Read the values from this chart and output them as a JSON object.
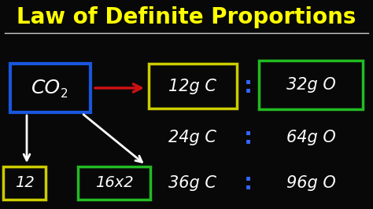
{
  "bg_color": "#080808",
  "title": "Law of Definite Proportions",
  "title_color": "#ffff00",
  "title_fontsize": 20,
  "separator_color": "#cccccc",
  "co2_box_color": "#1a55dd",
  "box1_color": "#cccc00",
  "box2_color": "#22bb22",
  "num1_box_color": "#cccc00",
  "num2_box_color": "#22bb22",
  "arrow_color": "#cc1111",
  "colon_color": "#3366ff",
  "white": "#ffffff",
  "row1_left": "12g C",
  "row1_right": "32g O",
  "row2_left": "24g C",
  "row2_right": "64g O",
  "row3_left": "36g C",
  "row3_right": "96g O",
  "num1_text": "12",
  "num2_text": "16x2"
}
